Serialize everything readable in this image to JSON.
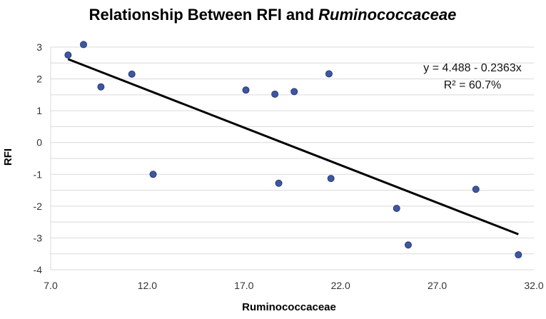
{
  "chart_data": {
    "type": "scatter",
    "title_plain": "Relationship Between RFI and ",
    "title_italic": "Ruminococcaceae",
    "xlabel": "Ruminococcaceae",
    "ylabel": "RFI",
    "xlim": [
      7.0,
      32.0
    ],
    "ylim": [
      -4,
      3
    ],
    "xticks": [
      "7.0",
      "12.0",
      "17.0",
      "22.0",
      "27.0",
      "32.0"
    ],
    "xtick_values": [
      7,
      12,
      17,
      22,
      27,
      32
    ],
    "yticks": [
      "3",
      "2",
      "1",
      "0",
      "-1",
      "-2",
      "-3",
      "-4"
    ],
    "ytick_values": [
      3,
      2,
      1,
      0,
      -1,
      -2,
      -3,
      -4
    ],
    "grid": true,
    "point_color": "#3f56a0",
    "trend_color": "#000000",
    "points": [
      {
        "x": 7.9,
        "y": 2.75
      },
      {
        "x": 8.7,
        "y": 3.08
      },
      {
        "x": 9.6,
        "y": 1.75
      },
      {
        "x": 11.2,
        "y": 2.15
      },
      {
        "x": 12.3,
        "y": -1.0
      },
      {
        "x": 17.1,
        "y": 1.65
      },
      {
        "x": 18.6,
        "y": 1.52
      },
      {
        "x": 18.8,
        "y": -1.28
      },
      {
        "x": 19.6,
        "y": 1.6
      },
      {
        "x": 21.4,
        "y": 2.16
      },
      {
        "x": 21.5,
        "y": -1.13
      },
      {
        "x": 24.9,
        "y": -2.07
      },
      {
        "x": 25.5,
        "y": -3.22
      },
      {
        "x": 29.0,
        "y": -1.47
      },
      {
        "x": 31.2,
        "y": -3.53
      }
    ],
    "trendline": {
      "x": [
        7.9,
        31.2
      ],
      "equation": "y = 4.488 - 0.2363x",
      "r_squared": "R² = 60.7%"
    }
  }
}
